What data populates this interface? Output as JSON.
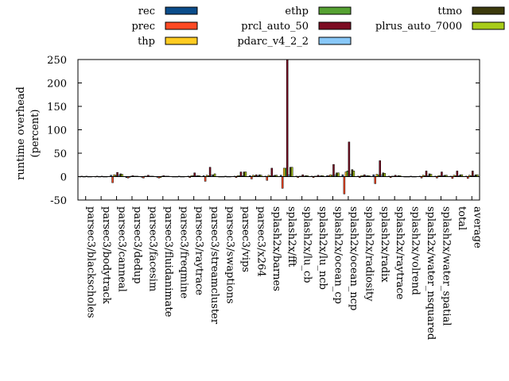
{
  "chart_data": {
    "type": "bar",
    "ylabel": "runtime overhead (percent)",
    "ylabel_lines": [
      "runtime overhead",
      "(percent)"
    ],
    "ylim": [
      -50,
      250
    ],
    "yticks": [
      -50,
      0,
      50,
      100,
      150,
      200,
      250
    ],
    "grid": false,
    "legend_position": "top",
    "categories": [
      "parsec3/blackscholes",
      "parsec3/bodytrack",
      "parsec3/canneal",
      "parsec3/dedup",
      "parsec3/facesim",
      "parsec3/fluidanimate",
      "parsec3/freqmine",
      "parsec3/raytrace",
      "parsec3/streamcluster",
      "parsec3/swaptions",
      "parsec3/vips",
      "parsec3/x264",
      "splash2x/barnes",
      "splash2x/fft",
      "splash2x/lu_cb",
      "splash2x/lu_ncb",
      "splash2x/ocean_cp",
      "splash2x/ocean_ncp",
      "splash2x/radiosity",
      "splash2x/radix",
      "splash2x/raytrace",
      "splash2x/volrend",
      "splash2x/water_nsquared",
      "splash2x/water_spatial",
      "total",
      "average"
    ],
    "series": [
      {
        "name": "rec",
        "color": "#0b4d8b",
        "values": [
          0.5,
          0.5,
          3,
          -2,
          -1,
          -1,
          0.5,
          1,
          2,
          0.5,
          1,
          2,
          1,
          3,
          1,
          1,
          2,
          4,
          1,
          4,
          1,
          0.5,
          1,
          1,
          1,
          1
        ]
      },
      {
        "name": "prec",
        "color": "#ff4a24",
        "values": [
          1,
          1,
          -13,
          -3,
          -3,
          -3,
          0.5,
          -2,
          -10,
          0.5,
          -2,
          -5,
          -8,
          -25,
          -2,
          -2,
          2,
          -37,
          -2,
          -15,
          -2,
          0.5,
          -3,
          -3,
          -4,
          -4
        ]
      },
      {
        "name": "thp",
        "color": "#ffcc22",
        "values": [
          0.5,
          0.5,
          4,
          -1,
          1,
          -2,
          0.5,
          2,
          3,
          0.5,
          2,
          3,
          3,
          18,
          1,
          1,
          4,
          10,
          2,
          5,
          1,
          0.5,
          3,
          2,
          3,
          3
        ]
      },
      {
        "name": "ethp",
        "color": "#56a232",
        "values": [
          0.5,
          0.5,
          3,
          1,
          1,
          1,
          0.5,
          2,
          2,
          0.5,
          2,
          2,
          2,
          18,
          1,
          1,
          3,
          12,
          2,
          4,
          1,
          0.5,
          2,
          2,
          2,
          2
        ]
      },
      {
        "name": "prcl_auto_50",
        "color": "#7c0c22",
        "values": [
          1,
          1,
          9,
          2,
          3,
          2,
          1,
          8,
          20,
          1,
          10,
          4,
          18,
          250,
          4,
          3,
          26,
          74,
          4,
          34,
          3,
          1,
          12,
          10,
          12,
          12
        ]
      },
      {
        "name": "pdarc_v4_2_2",
        "color": "#88c8f8",
        "values": [
          0.5,
          0.5,
          3,
          1,
          1,
          1,
          0.5,
          2,
          3,
          0.5,
          2,
          2,
          2,
          4,
          1,
          1,
          3,
          5,
          2,
          3,
          1,
          0.5,
          2,
          2,
          2,
          2
        ]
      },
      {
        "name": "ttmo",
        "color": "#3c3a0c",
        "values": [
          0.5,
          0.5,
          6,
          1,
          1,
          1,
          0.5,
          2,
          4,
          0.5,
          10,
          4,
          3,
          20,
          2,
          2,
          8,
          15,
          2,
          8,
          2,
          0.5,
          6,
          3,
          4,
          4
        ]
      },
      {
        "name": "plrus_auto_7000",
        "color": "#a8cc18",
        "values": [
          0.5,
          0.5,
          5,
          1,
          1,
          1,
          0.5,
          2,
          6,
          0.5,
          10,
          3,
          3,
          20,
          2,
          2,
          8,
          12,
          2,
          7,
          2,
          0.5,
          5,
          3,
          4,
          4
        ]
      }
    ]
  }
}
